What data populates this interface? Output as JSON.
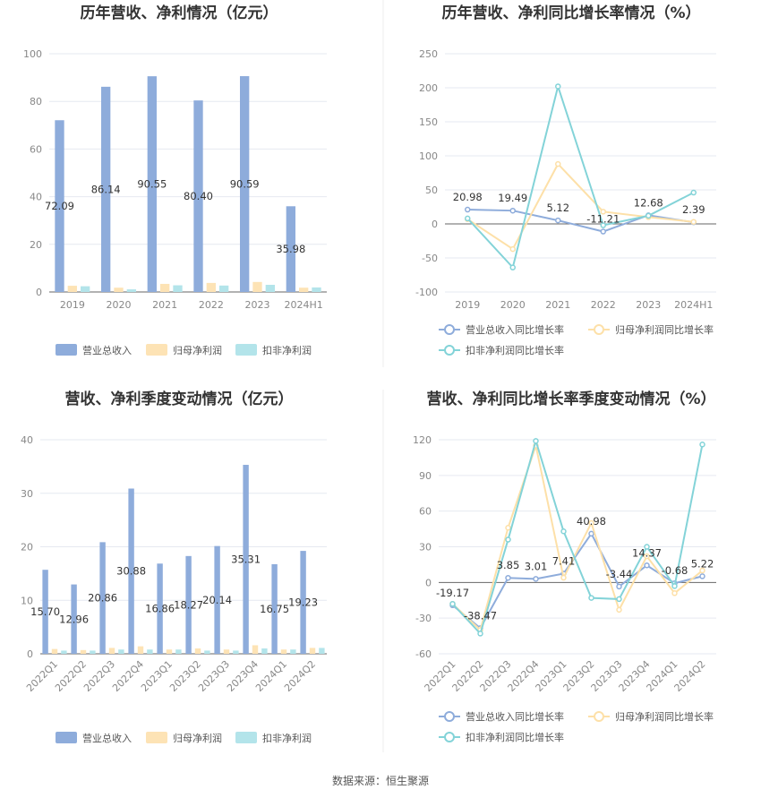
{
  "footer": {
    "source": "数据来源：恒生聚源"
  },
  "colors": {
    "revenue": "#8eacdb",
    "net_profit": "#fde3b5",
    "deducted_profit": "#b3e4ea",
    "revenue_line": "#8eacdb",
    "net_line": "#fde0a8",
    "deducted_line": "#83d3d8"
  },
  "chart_data": [
    {
      "type": "bar",
      "title": "历年营收、净利情况（亿元）",
      "categories": [
        "2019",
        "2020",
        "2021",
        "2022",
        "2023",
        "2024H1"
      ],
      "ylim": [
        0,
        100
      ],
      "yticks": [
        0,
        20,
        40,
        60,
        80,
        100
      ],
      "series": [
        {
          "name": "营业总收入",
          "values": [
            72.09,
            86.14,
            90.55,
            80.4,
            90.59,
            35.98
          ],
          "labels": [
            "72.09",
            "86.14",
            "90.55",
            "80.40",
            "90.59",
            "35.98"
          ]
        },
        {
          "name": "归母净利润",
          "values": [
            2.6,
            1.8,
            3.4,
            3.8,
            4.2,
            1.8
          ]
        },
        {
          "name": "扣非净利润",
          "values": [
            2.4,
            1.1,
            2.8,
            2.7,
            3.0,
            1.9
          ]
        }
      ],
      "legend": "bottom",
      "grid": true
    },
    {
      "type": "line",
      "title": "历年营收、净利同比增长率情况（%）",
      "categories": [
        "2019",
        "2020",
        "2021",
        "2022",
        "2023",
        "2024H1"
      ],
      "ylim": [
        -100,
        250
      ],
      "yticks": [
        -100,
        -50,
        0,
        50,
        100,
        150,
        200,
        250
      ],
      "series": [
        {
          "name": "营业总收入同比增长率",
          "values": [
            20.98,
            19.49,
            5.12,
            -11.21,
            12.68,
            2.39
          ],
          "labels": [
            "20.98",
            "19.49",
            "5.12",
            "-11.21",
            "12.68",
            "2.39"
          ]
        },
        {
          "name": "归母净利润同比增长率",
          "values": [
            7,
            -37,
            88,
            18,
            10,
            3
          ]
        },
        {
          "name": "扣非净利润同比增长率",
          "values": [
            8,
            -64,
            202,
            -2,
            12,
            46
          ]
        }
      ],
      "legend": "bottom",
      "grid": true
    },
    {
      "type": "bar",
      "title": "营收、净利季度变动情况（亿元）",
      "categories": [
        "2022Q1",
        "2022Q2",
        "2022Q3",
        "2022Q4",
        "2023Q1",
        "2023Q2",
        "2023Q3",
        "2023Q4",
        "2024Q1",
        "2024Q2"
      ],
      "ylim": [
        0,
        40
      ],
      "yticks": [
        0,
        10,
        20,
        30,
        40
      ],
      "series": [
        {
          "name": "营业总收入",
          "values": [
            15.7,
            12.96,
            20.86,
            30.88,
            16.86,
            18.27,
            20.14,
            35.31,
            16.75,
            19.23
          ],
          "labels": [
            "15.70",
            "12.96",
            "20.86",
            "30.88",
            "16.86",
            "18.27",
            "20.14",
            "35.31",
            "16.75",
            "19.23"
          ]
        },
        {
          "name": "归母净利润",
          "values": [
            0.9,
            0.7,
            1.1,
            1.4,
            0.8,
            1.0,
            0.8,
            1.6,
            0.8,
            1.1
          ]
        },
        {
          "name": "扣非净利润",
          "values": [
            0.6,
            0.6,
            0.8,
            0.8,
            0.8,
            0.6,
            0.6,
            1.0,
            0.8,
            1.1
          ]
        }
      ],
      "legend": "bottom",
      "grid": true
    },
    {
      "type": "line",
      "title": "营收、净利同比增长率季度变动情况（%）",
      "categories": [
        "2022Q1",
        "2022Q2",
        "2022Q3",
        "2022Q4",
        "2023Q1",
        "2023Q2",
        "2023Q3",
        "2023Q4",
        "2024Q1",
        "2024Q2"
      ],
      "ylim": [
        -60,
        120
      ],
      "yticks": [
        -60,
        -30,
        0,
        30,
        60,
        90,
        120
      ],
      "series": [
        {
          "name": "营业总收入同比增长率",
          "values": [
            -19.17,
            -38.47,
            3.85,
            3.01,
            7.41,
            40.98,
            -3.44,
            14.37,
            -0.68,
            5.22
          ],
          "labels": [
            "-19.17",
            "-38.47",
            "3.85",
            "3.01",
            "7.41",
            "40.98",
            "-3.44",
            "14.37",
            "-0.68",
            "5.22"
          ]
        },
        {
          "name": "归母净利润同比增长率",
          "values": [
            -18,
            -40,
            46,
            115,
            4,
            50,
            -23,
            22,
            -9,
            10
          ]
        },
        {
          "name": "扣非净利润同比增长率",
          "values": [
            -18,
            -43,
            36,
            119,
            43,
            -13,
            -14,
            30,
            -3,
            116
          ]
        }
      ],
      "legend": "bottom",
      "grid": true
    }
  ]
}
